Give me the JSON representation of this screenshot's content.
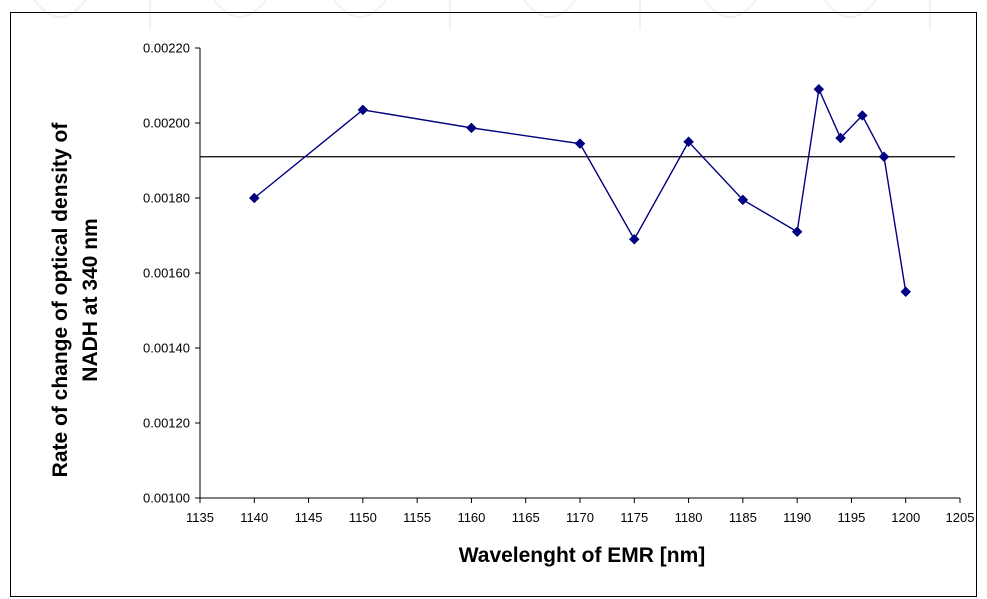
{
  "chart_data": {
    "type": "line",
    "xlabel": "Wavelenght of EMR [nm]",
    "ylabel_lines": [
      "Rate of change of optical density of",
      "NADH at 340 nm"
    ],
    "xlim": [
      1135,
      1205
    ],
    "ylim": [
      0.001,
      0.0022
    ],
    "x_ticks": [
      "1135",
      "1140",
      "1145",
      "1150",
      "1155",
      "1160",
      "1165",
      "1170",
      "1175",
      "1180",
      "1185",
      "1190",
      "1195",
      "1200",
      "1205"
    ],
    "y_ticks": [
      "0.00100",
      "0.00120",
      "0.00140",
      "0.00160",
      "0.00180",
      "0.00200",
      "0.00220"
    ],
    "grid": false,
    "series": [
      {
        "x": [
          1140,
          1150,
          1160,
          1170,
          1175,
          1180,
          1185,
          1190,
          1192,
          1194,
          1196,
          1198,
          1200
        ],
        "y": [
          0.0018,
          0.002035,
          0.001987,
          0.001945,
          0.00169,
          0.00195,
          0.001795,
          0.00171,
          0.00209,
          0.00196,
          0.00202,
          0.00191,
          0.00155
        ],
        "color": "#000080",
        "marker": "diamond"
      }
    ],
    "reference_line": {
      "y": 0.00191,
      "color": "#000000"
    }
  }
}
